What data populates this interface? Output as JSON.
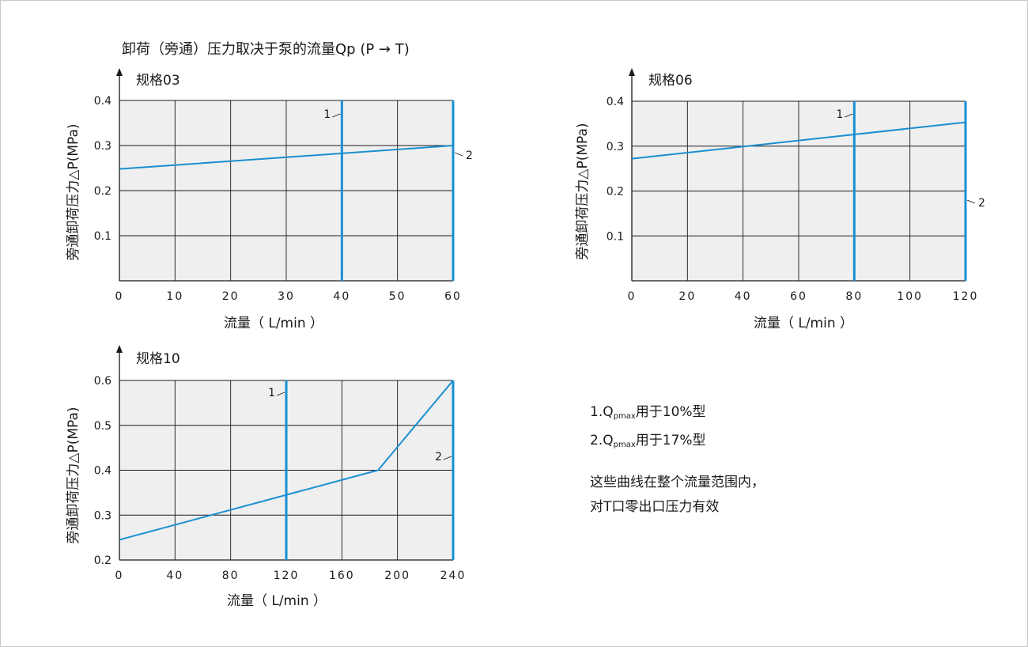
{
  "title": "卸荷（旁通）压力取决于泵的流量Qp (P → T)",
  "colors": {
    "plot_bg": "#efefef",
    "grid": "#1a1a1a",
    "line": "#1a8fd0"
  },
  "chart_data": [
    {
      "id": "c03",
      "type": "line",
      "subtitle": "规格03",
      "xlabel": "流量（ L/min ）",
      "ylabel": "旁通卸荷压力△P(MPa)",
      "xlim": [
        0,
        60
      ],
      "ylim": [
        0,
        0.4
      ],
      "xticks": [
        0,
        10,
        20,
        30,
        40,
        50,
        60
      ],
      "yticks": [
        0.1,
        0.2,
        0.3,
        0.4
      ],
      "xtick_labels": [
        "0",
        "10",
        "20",
        "30",
        "40",
        "50",
        "60"
      ],
      "ytick_labels": [
        "0.1",
        "0.2",
        "0.3",
        "0.4"
      ],
      "grid": true,
      "series": [
        {
          "x": [
            0,
            60
          ],
          "y": [
            0.248,
            0.3
          ]
        }
      ],
      "markers": [
        {
          "label": "1",
          "x": 40
        },
        {
          "label": "2",
          "x": 60
        }
      ]
    },
    {
      "id": "c06",
      "type": "line",
      "subtitle": "规格06",
      "xlabel": "流量（ L/min ）",
      "ylabel": "旁通卸荷压力△P(MPa)",
      "xlim": [
        0,
        120
      ],
      "ylim": [
        0,
        0.4
      ],
      "xticks": [
        0,
        20,
        40,
        60,
        80,
        100,
        120
      ],
      "yticks": [
        0.1,
        0.2,
        0.3,
        0.4
      ],
      "xtick_labels": [
        "0",
        "20",
        "40",
        "60",
        "80",
        "100",
        "120"
      ],
      "ytick_labels": [
        "0.1",
        "0.2",
        "0.3",
        "0.4"
      ],
      "grid": true,
      "series": [
        {
          "x": [
            0,
            120
          ],
          "y": [
            0.272,
            0.353
          ]
        }
      ],
      "markers": [
        {
          "label": "1",
          "x": 80
        },
        {
          "label": "2",
          "x": 120
        }
      ]
    },
    {
      "id": "c10",
      "type": "line",
      "subtitle": "规格10",
      "xlabel": "流量（ L/min ）",
      "ylabel": "旁通卸荷压力△P(MPa)",
      "xlim": [
        0,
        240
      ],
      "ylim": [
        0.2,
        0.6
      ],
      "xticks": [
        0,
        40,
        80,
        120,
        160,
        200,
        240
      ],
      "yticks": [
        0.2,
        0.3,
        0.4,
        0.5,
        0.6
      ],
      "xtick_labels": [
        "0",
        "40",
        "80",
        "120",
        "160",
        "200",
        "240"
      ],
      "ytick_labels": [
        "0.2",
        "0.3",
        "0.4",
        "0.5",
        "0.6"
      ],
      "grid": true,
      "series": [
        {
          "x": [
            0,
            186,
            240
          ],
          "y": [
            0.245,
            0.4,
            0.6
          ]
        }
      ],
      "markers": [
        {
          "label": "1",
          "x": 120
        },
        {
          "label": "2",
          "x": 240
        }
      ]
    }
  ],
  "notes": {
    "n1_prefix": "1.Q",
    "n1_sub": "pmax",
    "n1_suffix": "用于10%型",
    "n2_prefix": "2.Q",
    "n2_sub": "pmax",
    "n2_suffix": "用于17%型",
    "n3": "这些曲线在整个流量范围内，",
    "n4": "对T口零出口压力有效"
  }
}
